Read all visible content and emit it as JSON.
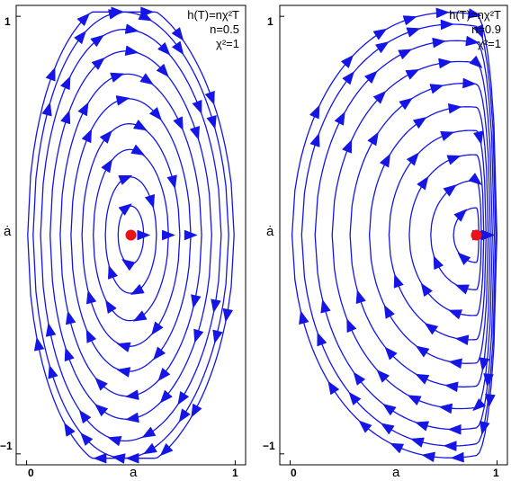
{
  "chart_data": [
    {
      "type": "scatter",
      "subtype": "streamplot",
      "annotation": [
        "h(T)=nχ²T",
        "n=0.5",
        "χ²=1"
      ],
      "params": {
        "n": 0.5,
        "chi2": 1
      },
      "xlabel": "a",
      "ylabel": "ȧ",
      "xlim": [
        -0.05,
        1.05
      ],
      "ylim": [
        -1.05,
        1.05
      ],
      "xticks": [
        "0",
        "1"
      ],
      "xtick_values": [
        0,
        1
      ],
      "yticks": [
        "1",
        "−1"
      ],
      "ytick_values": [
        1,
        -1
      ],
      "fixed_point": {
        "x": 0.5,
        "y": 0.0
      },
      "stream_color": "#1515e6",
      "point_color": "#e8141a",
      "grid": false
    },
    {
      "type": "scatter",
      "subtype": "streamplot",
      "annotation": [
        "h(T)=nχ²T",
        "n=0.9",
        "χ²=1"
      ],
      "params": {
        "n": 0.9,
        "chi2": 1
      },
      "xlabel": "a",
      "ylabel": "ȧ",
      "xlim": [
        -0.05,
        1.05
      ],
      "ylim": [
        -1.05,
        1.05
      ],
      "xticks": [
        "0",
        "1"
      ],
      "xtick_values": [
        0,
        1
      ],
      "yticks": [
        "1",
        "−1"
      ],
      "ytick_values": [
        1,
        -1
      ],
      "fixed_point": {
        "x": 0.9,
        "y": 0.0
      },
      "stream_color": "#1515e6",
      "point_color": "#e8141a",
      "grid": false
    }
  ]
}
